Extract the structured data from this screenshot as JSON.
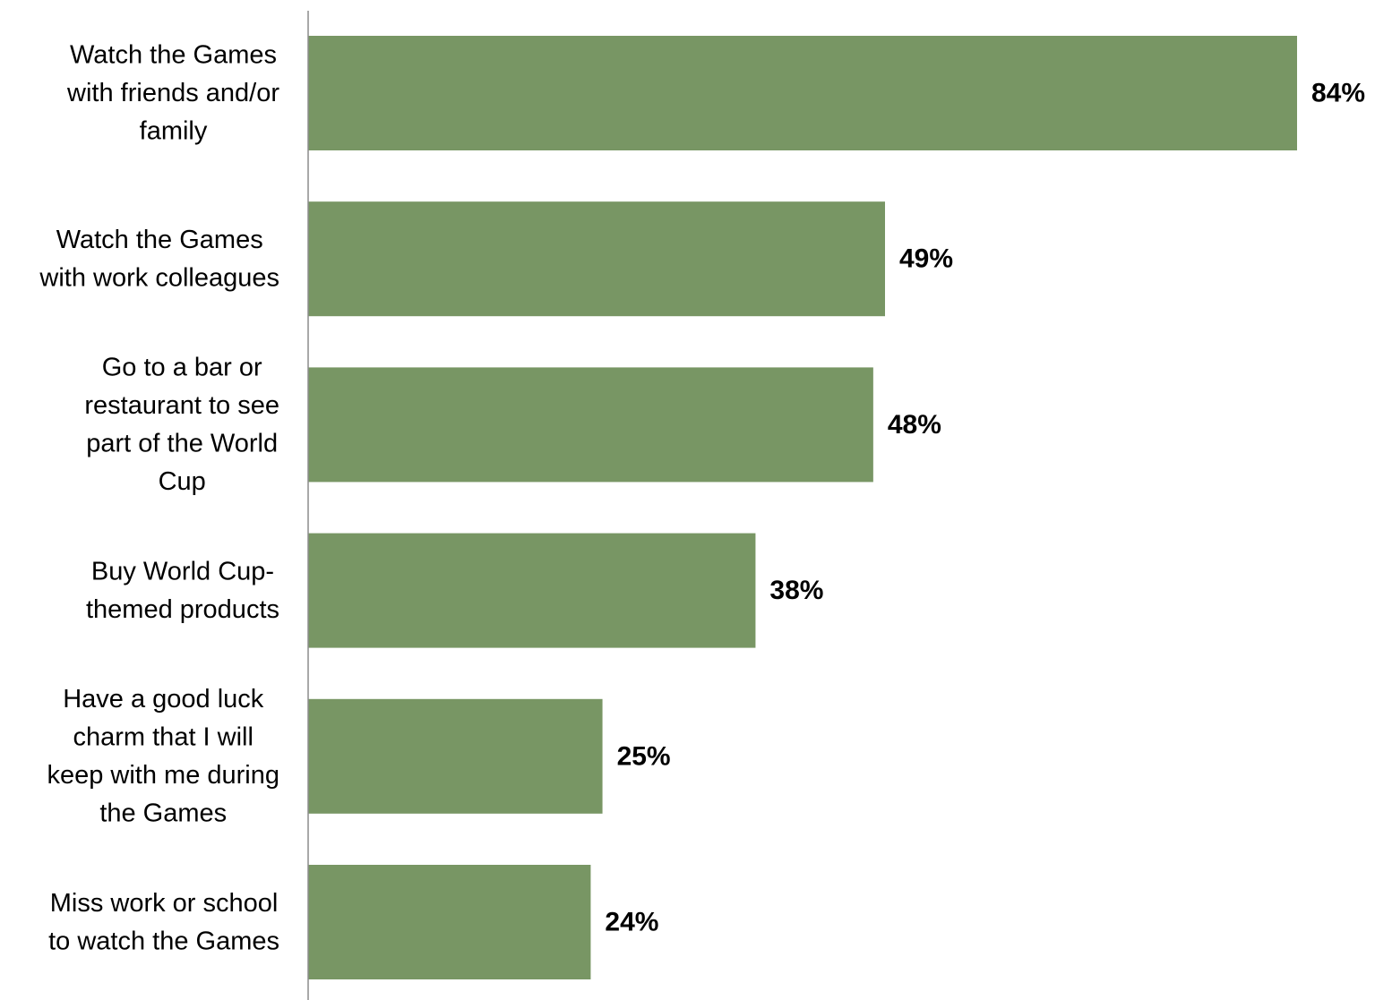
{
  "chart_data": {
    "type": "bar",
    "orientation": "horizontal",
    "title": "",
    "xlabel": "",
    "ylabel": "",
    "categories": [
      "Watch the Games with friends and/or family",
      "Watch the Games with work colleagues",
      "Go to a bar or restaurant to see part of the World Cup",
      "Buy World Cup-themed products",
      "Have a good luck charm that I will keep with me during the Games",
      "Miss work or school to watch the Games"
    ],
    "category_lines": [
      [
        "Watch the Games",
        "with friends and/or",
        "family"
      ],
      [
        "Watch the Games",
        "with work colleagues"
      ],
      [
        "Go to a bar or",
        "restaurant to see",
        "part of the World",
        "Cup"
      ],
      [
        "Buy World Cup-",
        "themed products"
      ],
      [
        "Have a good luck",
        "charm that I will",
        "keep with me during",
        "the Games"
      ],
      [
        "Miss work or school",
        "to watch the Games"
      ]
    ],
    "values": [
      84,
      49,
      48,
      38,
      25,
      24
    ],
    "value_labels": [
      "84%",
      "49%",
      "48%",
      "38%",
      "25%",
      "24%"
    ],
    "xlim": [
      0,
      84
    ],
    "grid": false,
    "legend": "none",
    "bar_color": "#789664",
    "axis_color": "#8c8c8c"
  }
}
